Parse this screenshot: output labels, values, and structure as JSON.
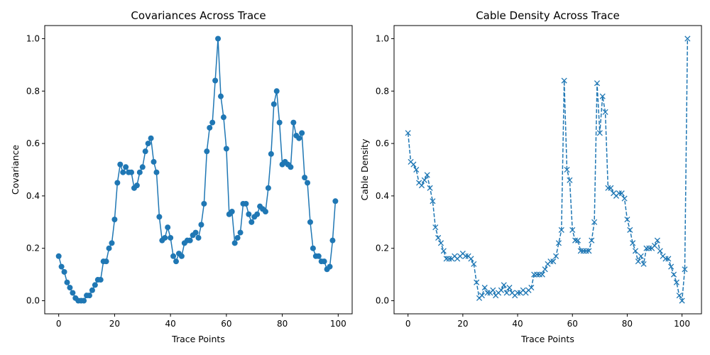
{
  "chart_data": [
    {
      "type": "line",
      "title": "Covariances Across Trace",
      "xlabel": "Trace Points",
      "ylabel": "Covariance",
      "xlim": [
        -5,
        105
      ],
      "ylim": [
        -0.05,
        1.05
      ],
      "xticks": [
        "0",
        "20",
        "40",
        "60",
        "80",
        "100"
      ],
      "xtick_values": [
        0,
        20,
        40,
        60,
        80,
        100
      ],
      "yticks": [
        "0.0",
        "0.2",
        "0.4",
        "0.6",
        "0.8",
        "1.0"
      ],
      "ytick_values": [
        0,
        0.2,
        0.4,
        0.6,
        0.8,
        1.0
      ],
      "marker": "o",
      "line_style": "solid",
      "color": "#1f77b4",
      "grid": false,
      "series": [
        {
          "values": [
            0.17,
            0.13,
            0.11,
            0.07,
            0.05,
            0.03,
            0.01,
            0.0,
            0.0,
            0.0,
            0.02,
            0.02,
            0.04,
            0.06,
            0.08,
            0.08,
            0.15,
            0.15,
            0.2,
            0.22,
            0.31,
            0.45,
            0.52,
            0.49,
            0.51,
            0.49,
            0.49,
            0.43,
            0.44,
            0.49,
            0.51,
            0.57,
            0.6,
            0.62,
            0.53,
            0.49,
            0.32,
            0.23,
            0.24,
            0.28,
            0.24,
            0.17,
            0.15,
            0.18,
            0.17,
            0.22,
            0.23,
            0.23,
            0.25,
            0.26,
            0.24,
            0.29,
            0.37,
            0.57,
            0.66,
            0.68,
            0.84,
            1.0,
            0.78,
            0.7,
            0.58,
            0.33,
            0.34,
            0.22,
            0.24,
            0.26,
            0.37,
            0.37,
            0.33,
            0.3,
            0.32,
            0.33,
            0.36,
            0.35,
            0.34,
            0.43,
            0.56,
            0.75,
            0.8,
            0.68,
            0.52,
            0.53,
            0.52,
            0.51,
            0.68,
            0.63,
            0.62,
            0.64,
            0.47,
            0.45,
            0.3,
            0.2,
            0.17,
            0.17,
            0.15,
            0.15,
            0.12,
            0.13,
            0.23,
            0.38
          ]
        }
      ]
    },
    {
      "type": "line",
      "title": "Cable Density Across Trace",
      "xlabel": "Trace Points",
      "ylabel": "Cable Density",
      "xlim": [
        -5.1,
        107.1
      ],
      "ylim": [
        -0.05,
        1.05
      ],
      "xticks": [
        "0",
        "20",
        "40",
        "60",
        "80",
        "100"
      ],
      "xtick_values": [
        0,
        20,
        40,
        60,
        80,
        100
      ],
      "yticks": [
        "0.0",
        "0.2",
        "0.4",
        "0.6",
        "0.8",
        "1.0"
      ],
      "ytick_values": [
        0,
        0.2,
        0.4,
        0.6,
        0.8,
        1.0
      ],
      "marker": "x",
      "line_style": "dashed",
      "color": "#1f77b4",
      "grid": false,
      "series": [
        {
          "values": [
            0.64,
            0.53,
            0.52,
            0.5,
            0.45,
            0.44,
            0.46,
            0.48,
            0.43,
            0.38,
            0.28,
            0.24,
            0.22,
            0.19,
            0.16,
            0.16,
            0.16,
            0.17,
            0.16,
            0.17,
            0.18,
            0.17,
            0.17,
            0.16,
            0.14,
            0.07,
            0.01,
            0.02,
            0.05,
            0.03,
            0.03,
            0.04,
            0.02,
            0.03,
            0.04,
            0.06,
            0.03,
            0.05,
            0.03,
            0.02,
            0.03,
            0.03,
            0.04,
            0.03,
            0.04,
            0.05,
            0.1,
            0.1,
            0.1,
            0.1,
            0.12,
            0.14,
            0.15,
            0.15,
            0.17,
            0.22,
            0.27,
            0.84,
            0.5,
            0.46,
            0.27,
            0.23,
            0.23,
            0.19,
            0.19,
            0.19,
            0.19,
            0.23,
            0.3,
            0.83,
            0.64,
            0.78,
            0.72,
            0.43,
            0.43,
            0.41,
            0.4,
            0.41,
            0.41,
            0.39,
            0.31,
            0.27,
            0.22,
            0.19,
            0.15,
            0.17,
            0.14,
            0.2,
            0.2,
            0.2,
            0.21,
            0.23,
            0.19,
            0.17,
            0.16,
            0.16,
            0.13,
            0.1,
            0.07,
            0.02,
            0.0,
            0.12,
            1.0
          ]
        }
      ]
    }
  ]
}
